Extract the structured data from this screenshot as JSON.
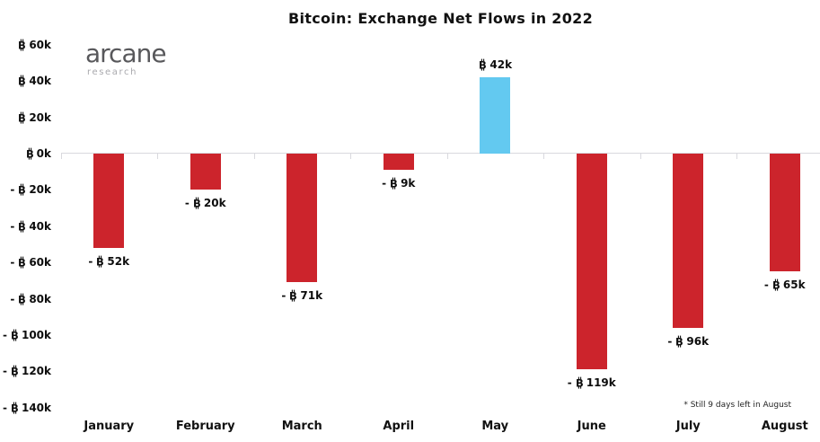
{
  "branding": {
    "logo_text": "arcane",
    "logo_subtext": "research"
  },
  "chart_data": {
    "type": "bar",
    "title": "Bitcoin: Exchange Net Flows in 2022",
    "categories": [
      "January",
      "February",
      "March",
      "April",
      "May",
      "June",
      "July",
      "August"
    ],
    "series": [
      {
        "name": "Net flow (thousand BTC)",
        "values_k": [
          -52,
          -20,
          -71,
          -9,
          42,
          -119,
          -96,
          -65
        ]
      }
    ],
    "bar_labels": [
      "- ₿ 52k",
      "- ₿ 20k",
      "- ₿ 71k",
      "- ₿ 9k",
      "₿ 42k",
      "- ₿ 119k",
      "- ₿ 96k",
      "- ₿ 65k"
    ],
    "y_ticks": [
      {
        "value_k": 60,
        "label": "₿ 60k"
      },
      {
        "value_k": 40,
        "label": "₿ 40k"
      },
      {
        "value_k": 20,
        "label": "₿ 20k"
      },
      {
        "value_k": 0,
        "label": "₿ 0k"
      },
      {
        "value_k": -20,
        "label": "- ₿ 20k"
      },
      {
        "value_k": -40,
        "label": "- ₿ 40k"
      },
      {
        "value_k": -60,
        "label": "- ₿ 60k"
      },
      {
        "value_k": -80,
        "label": "- ₿ 80k"
      },
      {
        "value_k": -100,
        "label": "- ₿ 100k"
      },
      {
        "value_k": -120,
        "label": "- ₿ 120k"
      },
      {
        "value_k": -140,
        "label": "- ₿ 140k"
      }
    ],
    "ylim_k": [
      -140,
      60
    ],
    "grid": false,
    "legend": null,
    "footnote": "* Still 9 days left in August",
    "colors": {
      "positive_bar": "#63c9f0",
      "negative_bar": "#cc242c",
      "axis_line": "#d9d9de",
      "text": "#0d0d0d",
      "logo_main": "#58585b",
      "logo_sub": "#a9a9ad"
    }
  }
}
